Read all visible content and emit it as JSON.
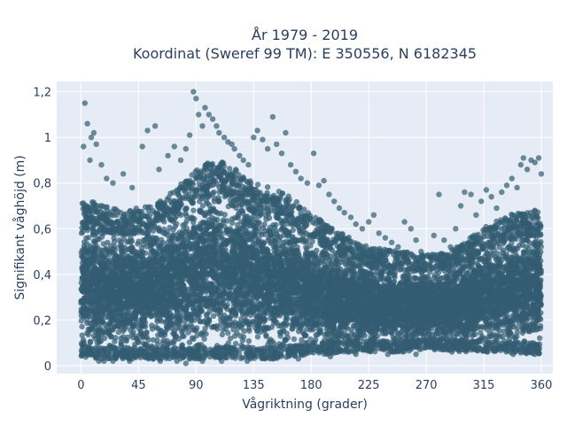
{
  "chart_data": {
    "type": "scatter",
    "title_lines": [
      "År 1979 - 2019",
      "Koordinat (Sweref 99 TM): E 350556, N 6182345"
    ],
    "xlabel": "Vågriktning (grader)",
    "ylabel": "Signifikant våghöjd (m)",
    "xlim": [
      -19,
      369
    ],
    "ylim": [
      -0.035,
      1.245
    ],
    "x_ticks": [
      0,
      45,
      90,
      135,
      180,
      225,
      270,
      315,
      360
    ],
    "x_tick_labels": [
      "0",
      "45",
      "90",
      "135",
      "180",
      "225",
      "270",
      "315",
      "360"
    ],
    "y_ticks": [
      0,
      0.2,
      0.4,
      0.6,
      0.8,
      1.0,
      1.2
    ],
    "y_tick_labels": [
      "0",
      "0,2",
      "0,4",
      "0,6",
      "0,8",
      "1",
      "1,2"
    ],
    "grid": true,
    "marker_color": "#335c72",
    "plot_bg": "#e5ecf6",
    "density_band": [
      {
        "x": 0,
        "y_low": 0.04,
        "y_high": 0.67
      },
      {
        "x": 15,
        "y_low": 0.03,
        "y_high": 0.66
      },
      {
        "x": 30,
        "y_low": 0.03,
        "y_high": 0.63
      },
      {
        "x": 45,
        "y_low": 0.03,
        "y_high": 0.64
      },
      {
        "x": 60,
        "y_low": 0.03,
        "y_high": 0.66
      },
      {
        "x": 75,
        "y_low": 0.03,
        "y_high": 0.72
      },
      {
        "x": 90,
        "y_low": 0.03,
        "y_high": 0.8
      },
      {
        "x": 105,
        "y_low": 0.03,
        "y_high": 0.84
      },
      {
        "x": 120,
        "y_low": 0.03,
        "y_high": 0.8
      },
      {
        "x": 135,
        "y_low": 0.03,
        "y_high": 0.74
      },
      {
        "x": 150,
        "y_low": 0.03,
        "y_high": 0.72
      },
      {
        "x": 165,
        "y_low": 0.04,
        "y_high": 0.68
      },
      {
        "x": 180,
        "y_low": 0.05,
        "y_high": 0.62
      },
      {
        "x": 195,
        "y_low": 0.05,
        "y_high": 0.56
      },
      {
        "x": 210,
        "y_low": 0.06,
        "y_high": 0.52
      },
      {
        "x": 225,
        "y_low": 0.06,
        "y_high": 0.48
      },
      {
        "x": 240,
        "y_low": 0.06,
        "y_high": 0.47
      },
      {
        "x": 255,
        "y_low": 0.06,
        "y_high": 0.46
      },
      {
        "x": 270,
        "y_low": 0.07,
        "y_high": 0.45
      },
      {
        "x": 285,
        "y_low": 0.07,
        "y_high": 0.46
      },
      {
        "x": 300,
        "y_low": 0.06,
        "y_high": 0.5
      },
      {
        "x": 315,
        "y_low": 0.06,
        "y_high": 0.56
      },
      {
        "x": 330,
        "y_low": 0.06,
        "y_high": 0.6
      },
      {
        "x": 345,
        "y_low": 0.05,
        "y_high": 0.63
      },
      {
        "x": 360,
        "y_low": 0.05,
        "y_high": 0.63
      }
    ],
    "sample_points": [
      [
        3,
        1.15
      ],
      [
        5,
        1.06
      ],
      [
        8,
        1.0
      ],
      [
        10,
        1.02
      ],
      [
        2,
        0.96
      ],
      [
        7,
        0.9
      ],
      [
        12,
        0.97
      ],
      [
        16,
        0.88
      ],
      [
        20,
        0.82
      ],
      [
        25,
        0.8
      ],
      [
        33,
        0.84
      ],
      [
        40,
        0.78
      ],
      [
        48,
        0.96
      ],
      [
        52,
        1.03
      ],
      [
        58,
        1.05
      ],
      [
        61,
        0.86
      ],
      [
        68,
        0.92
      ],
      [
        73,
        0.96
      ],
      [
        78,
        0.9
      ],
      [
        82,
        0.95
      ],
      [
        85,
        1.01
      ],
      [
        88,
        1.2
      ],
      [
        90,
        1.17
      ],
      [
        92,
        1.1
      ],
      [
        95,
        1.05
      ],
      [
        97,
        1.13
      ],
      [
        100,
        1.1
      ],
      [
        103,
        1.08
      ],
      [
        106,
        1.05
      ],
      [
        108,
        1.02
      ],
      [
        112,
        1.0
      ],
      [
        115,
        0.98
      ],
      [
        118,
        0.97
      ],
      [
        120,
        0.95
      ],
      [
        124,
        0.92
      ],
      [
        127,
        0.9
      ],
      [
        131,
        0.88
      ],
      [
        135,
        1.0
      ],
      [
        138,
        1.03
      ],
      [
        142,
        0.99
      ],
      [
        146,
        0.95
      ],
      [
        150,
        1.09
      ],
      [
        153,
        0.97
      ],
      [
        157,
        0.93
      ],
      [
        160,
        1.02
      ],
      [
        164,
        0.88
      ],
      [
        168,
        0.85
      ],
      [
        172,
        0.82
      ],
      [
        177,
        0.8
      ],
      [
        182,
        0.93
      ],
      [
        186,
        0.79
      ],
      [
        190,
        0.81
      ],
      [
        194,
        0.75
      ],
      [
        198,
        0.72
      ],
      [
        202,
        0.69
      ],
      [
        206,
        0.67
      ],
      [
        211,
        0.65
      ],
      [
        215,
        0.62
      ],
      [
        220,
        0.6
      ],
      [
        225,
        0.63
      ],
      [
        229,
        0.66
      ],
      [
        233,
        0.58
      ],
      [
        238,
        0.56
      ],
      [
        243,
        0.54
      ],
      [
        248,
        0.52
      ],
      [
        253,
        0.63
      ],
      [
        258,
        0.6
      ],
      [
        262,
        0.55
      ],
      [
        266,
        0.5
      ],
      [
        271,
        0.48
      ],
      [
        276,
        0.57
      ],
      [
        280,
        0.75
      ],
      [
        284,
        0.55
      ],
      [
        289,
        0.52
      ],
      [
        293,
        0.6
      ],
      [
        297,
        0.7
      ],
      [
        300,
        0.76
      ],
      [
        305,
        0.75
      ],
      [
        309,
        0.66
      ],
      [
        313,
        0.72
      ],
      [
        317,
        0.77
      ],
      [
        321,
        0.74
      ],
      [
        325,
        0.69
      ],
      [
        329,
        0.76
      ],
      [
        333,
        0.79
      ],
      [
        337,
        0.82
      ],
      [
        341,
        0.78
      ],
      [
        344,
        0.88
      ],
      [
        346,
        0.91
      ],
      [
        349,
        0.86
      ],
      [
        352,
        0.9
      ],
      [
        355,
        0.89
      ],
      [
        358,
        0.91
      ],
      [
        360,
        0.84
      ],
      [
        14,
        0.02
      ],
      [
        18,
        0.02
      ],
      [
        25,
        0.02
      ],
      [
        38,
        0.02
      ],
      [
        62,
        0.02
      ],
      [
        75,
        0.02
      ],
      [
        82,
        0.01
      ],
      [
        95,
        0.02
      ],
      [
        110,
        0.02
      ],
      [
        130,
        0.02
      ],
      [
        150,
        0.03
      ],
      [
        170,
        0.03
      ],
      [
        195,
        0.04
      ],
      [
        215,
        0.05
      ],
      [
        240,
        0.05
      ],
      [
        262,
        0.05
      ],
      [
        290,
        0.06
      ],
      [
        318,
        0.06
      ],
      [
        338,
        0.05
      ],
      [
        355,
        0.05
      ]
    ]
  }
}
